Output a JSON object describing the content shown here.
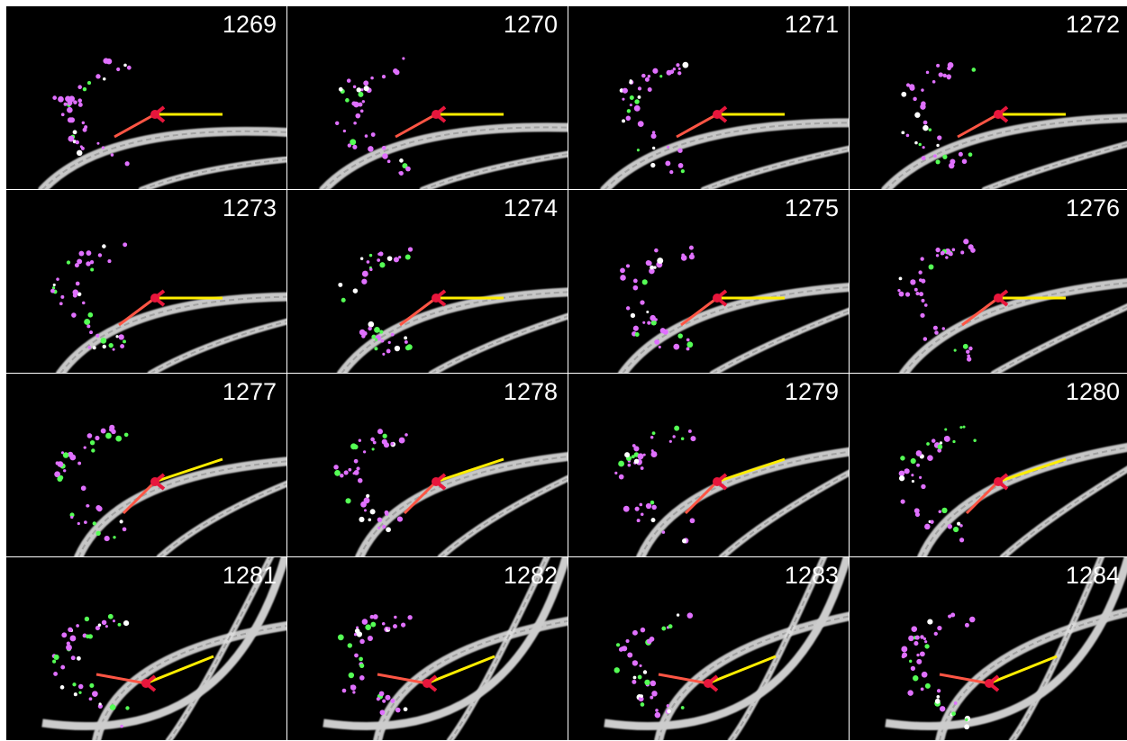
{
  "panels": [
    {
      "label": "1269"
    },
    {
      "label": "1270"
    },
    {
      "label": "1271"
    },
    {
      "label": "1272"
    },
    {
      "label": "1273"
    },
    {
      "label": "1274"
    },
    {
      "label": "1275"
    },
    {
      "label": "1276"
    },
    {
      "label": "1277"
    },
    {
      "label": "1278"
    },
    {
      "label": "1279"
    },
    {
      "label": "1280"
    },
    {
      "label": "1281"
    },
    {
      "label": "1282"
    },
    {
      "label": "1283"
    },
    {
      "label": "1284"
    }
  ]
}
